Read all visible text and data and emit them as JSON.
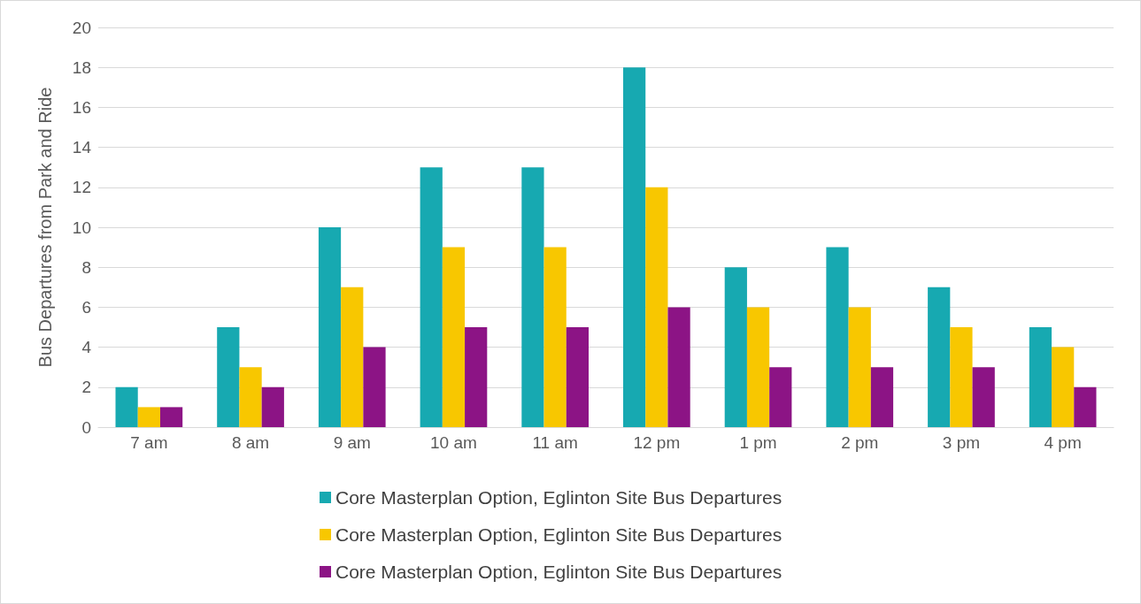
{
  "chart_data": {
    "type": "bar",
    "ylabel": "Bus Departures from Park and Ride",
    "categories": [
      "7 am",
      "8 am",
      "9 am",
      "10 am",
      "11 am",
      "12 pm",
      "1 pm",
      "2 pm",
      "3 pm",
      "4 pm"
    ],
    "series": [
      {
        "name": "Core Masterplan Option, Eglinton Site Bus Departures",
        "color": "#17a9b1",
        "values": [
          2,
          5,
          10,
          13,
          13,
          18,
          8,
          9,
          7,
          5
        ]
      },
      {
        "name": "Core Masterplan Option, Eglinton Site Bus Departures",
        "color": "#f8c700",
        "values": [
          1,
          3,
          7,
          9,
          9,
          12,
          6,
          6,
          5,
          4
        ]
      },
      {
        "name": "Core Masterplan Option, Eglinton Site Bus Departures",
        "color": "#8c1485",
        "values": [
          1,
          2,
          4,
          5,
          5,
          6,
          3,
          3,
          3,
          2
        ]
      }
    ],
    "ylim": [
      0,
      20
    ],
    "yticks": [
      0,
      2,
      4,
      6,
      8,
      10,
      12,
      14,
      16,
      18,
      20
    ],
    "grid": "y",
    "legend": "bottom"
  }
}
